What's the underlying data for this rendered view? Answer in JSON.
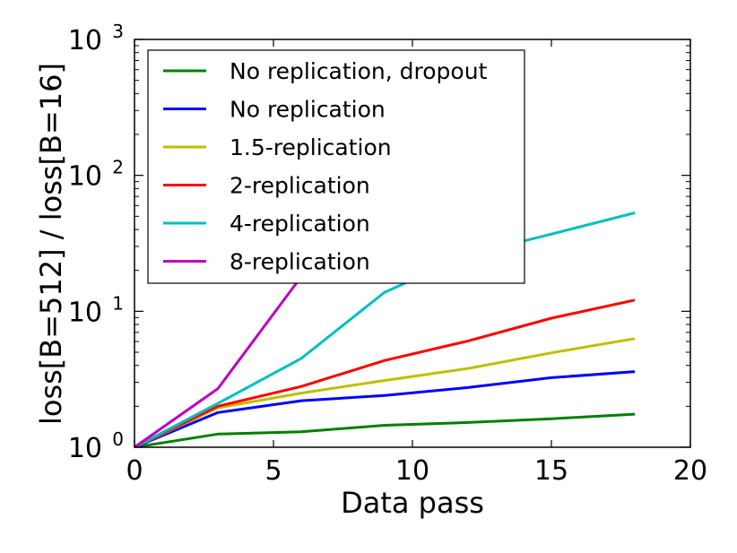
{
  "chart_data": {
    "type": "line",
    "xlabel": "Data pass",
    "ylabel": "loss[B=512] / loss[B=16]",
    "xlim": [
      0,
      20
    ],
    "ylim": [
      1,
      1000
    ],
    "yscale": "log",
    "xticks": [
      0,
      5,
      10,
      15,
      20
    ],
    "yticks": [
      {
        "base": "10",
        "exp": "0"
      },
      {
        "base": "10",
        "exp": "1"
      },
      {
        "base": "10",
        "exp": "2"
      },
      {
        "base": "10",
        "exp": "3"
      }
    ],
    "legend_position": "top-left",
    "series": [
      {
        "name": "No replication, dropout",
        "color": "#008000",
        "x": [
          0,
          3,
          6,
          9,
          12,
          15,
          18
        ],
        "y": [
          1.0,
          1.25,
          1.3,
          1.45,
          1.52,
          1.62,
          1.75
        ]
      },
      {
        "name": "No replication",
        "color": "#0000ff",
        "x": [
          0,
          3,
          6,
          9,
          12,
          15,
          18
        ],
        "y": [
          1.0,
          1.8,
          2.2,
          2.4,
          2.75,
          3.25,
          3.6
        ]
      },
      {
        "name": "1.5-replication",
        "color": "#bfbf00",
        "x": [
          0,
          3,
          6,
          9,
          12,
          15,
          18
        ],
        "y": [
          1.0,
          1.95,
          2.5,
          3.1,
          3.8,
          4.95,
          6.3
        ]
      },
      {
        "name": "2-replication",
        "color": "#ff0000",
        "x": [
          0,
          3,
          6,
          9,
          12,
          15,
          18
        ],
        "y": [
          1.0,
          2.0,
          2.8,
          4.35,
          6.05,
          8.9,
          12.1
        ]
      },
      {
        "name": "4-replication",
        "color": "#00bfbf",
        "x": [
          0,
          3,
          6,
          9,
          12,
          15,
          18
        ],
        "y": [
          1.0,
          2.1,
          4.5,
          13.8,
          26.0,
          37.0,
          53.0
        ]
      },
      {
        "name": "8-replication",
        "color": "#bf00bf",
        "x": [
          0,
          3,
          6
        ],
        "y": [
          1.0,
          2.7,
          18.0
        ]
      }
    ]
  }
}
